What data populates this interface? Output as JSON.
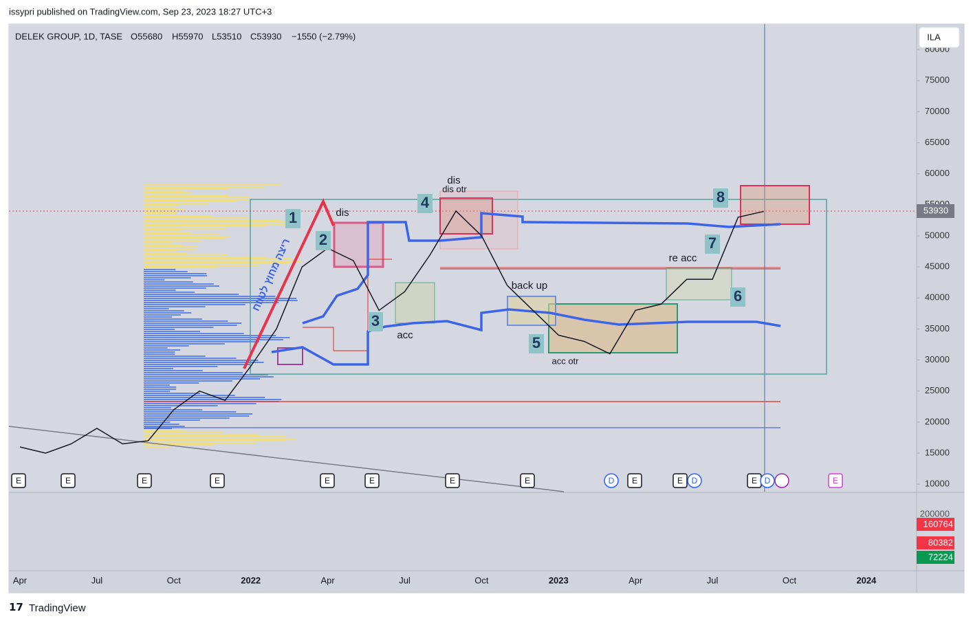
{
  "header": {
    "publisher": "issypri published on TradingView.com, Sep 23, 2023 18:27 UTC+3"
  },
  "legend": {
    "symbol": "DELEK GROUP, 1D, TASE",
    "open": "O55680",
    "high": "H55970",
    "low": "L53510",
    "close": "C53930",
    "change": "−1550 (−2.79%)"
  },
  "currency_button": "ILA",
  "chart_data": {
    "type": "line",
    "categories": [
      "Apr",
      null,
      null,
      "Jul",
      null,
      null,
      "Oct",
      null,
      null,
      "2022",
      null,
      null,
      "Apr",
      null,
      null,
      "Jul",
      null,
      null,
      "Oct",
      null,
      null,
      "2023",
      null,
      null,
      "Apr",
      null,
      null,
      "Jul",
      null,
      null,
      "Oct",
      null,
      null,
      "2024"
    ],
    "series": [
      {
        "color": "#131722",
        "values": [
          16000,
          15000,
          16500,
          19000,
          16500,
          17000,
          22000,
          25000,
          23500,
          29000,
          35000,
          45000,
          48000,
          46000,
          38000,
          41000,
          47000,
          54000,
          50000,
          42000,
          38000,
          34000,
          33000,
          31000,
          38000,
          39000,
          43000,
          43000,
          53000,
          53930,
          null,
          null,
          null,
          null
        ]
      }
    ],
    "ylim": [
      8800,
      84100
    ],
    "yticks": [
      10000,
      15000,
      20000,
      25000,
      30000,
      35000,
      40000,
      45000,
      50000,
      55000,
      60000,
      65000,
      70000,
      75000,
      80000
    ]
  },
  "volume": {
    "tick": "200000",
    "labels": [
      "160764",
      "80382",
      "72224"
    ]
  },
  "annotations": {
    "numbers": [
      "1",
      "2",
      "3",
      "4",
      "5",
      "6",
      "7",
      "8"
    ],
    "texts": [
      "dis",
      "dis",
      "dis otr",
      "acc",
      "back up",
      "acc otr",
      "re acc"
    ],
    "hebrew": "ריצה מחוץ לטווח"
  },
  "events": [
    "E",
    "E",
    "E",
    "E",
    "E",
    "E",
    "E",
    "E",
    "D",
    "E",
    "E",
    "D",
    "E",
    "D",
    "E"
  ],
  "footer": {
    "brand": "TradingView"
  }
}
